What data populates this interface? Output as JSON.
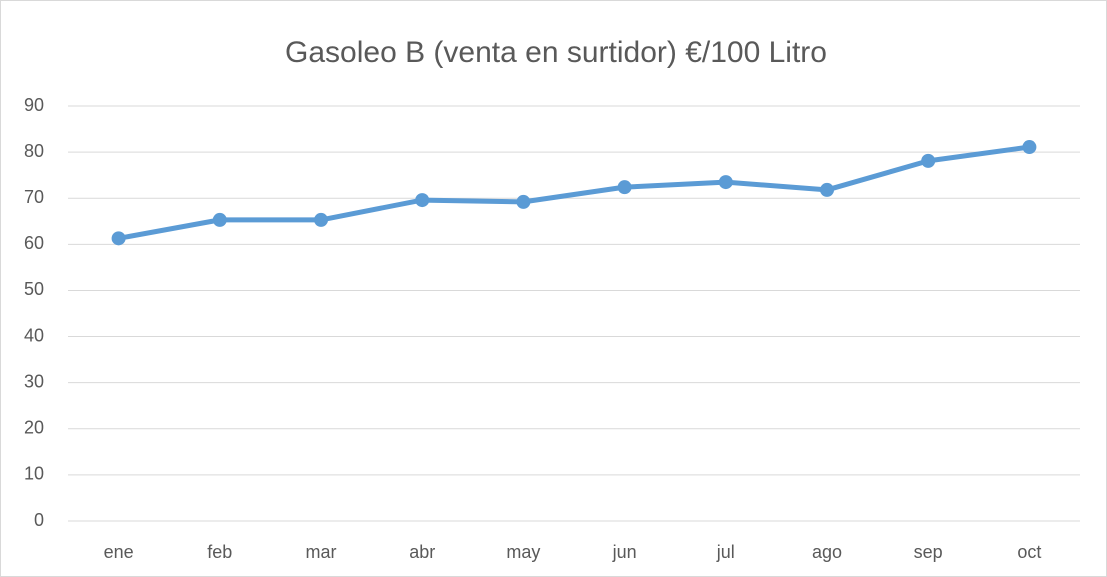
{
  "chart_data": {
    "type": "line",
    "title": "Gasoleo B (venta en surtidor) €/100 Litro",
    "categories": [
      "ene",
      "feb",
      "mar",
      "abr",
      "may",
      "jun",
      "jul",
      "ago",
      "sep",
      "oct"
    ],
    "series": [
      {
        "color": "#5b9bd5",
        "values": [
          61.3,
          65.3,
          65.3,
          69.6,
          69.2,
          72.4,
          73.5,
          71.8,
          78.1,
          81.1
        ]
      }
    ],
    "ylim": [
      0,
      90
    ],
    "yticks": [
      0,
      10,
      20,
      30,
      40,
      50,
      60,
      70,
      80,
      90
    ],
    "grid": true
  }
}
